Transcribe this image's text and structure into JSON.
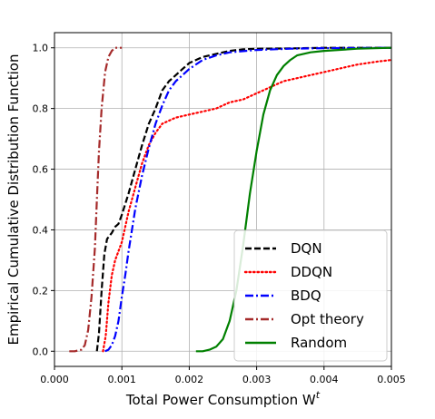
{
  "chart_data": {
    "type": "line",
    "title": "",
    "xlabel": "Total Power Consumption W",
    "xlabel_superscript": "t",
    "ylabel": "Empirical Cumulative Distribution Function",
    "xlim": [
      0.0,
      0.005
    ],
    "ylim": [
      -0.05,
      1.05
    ],
    "x_ticks": [
      0.0,
      0.001,
      0.002,
      0.003,
      0.004,
      0.005
    ],
    "x_tick_labels": [
      "0.000",
      "0.001",
      "0.002",
      "0.003",
      "0.004",
      "0.005"
    ],
    "y_ticks": [
      0.0,
      0.2,
      0.4,
      0.6,
      0.8,
      1.0
    ],
    "y_tick_labels": [
      "0.0",
      "0.2",
      "0.4",
      "0.6",
      "0.8",
      "1.0"
    ],
    "grid": true,
    "legend_position": "bottom-right",
    "series": [
      {
        "name": "DQN",
        "color": "#000000",
        "style": "dashed",
        "points": [
          [
            0.00063,
            0.0
          ],
          [
            0.00066,
            0.06
          ],
          [
            0.0007,
            0.2
          ],
          [
            0.00074,
            0.32
          ],
          [
            0.00078,
            0.37
          ],
          [
            0.00085,
            0.39
          ],
          [
            0.0009,
            0.41
          ],
          [
            0.00095,
            0.42
          ],
          [
            0.001,
            0.45
          ],
          [
            0.0011,
            0.52
          ],
          [
            0.0012,
            0.6
          ],
          [
            0.0013,
            0.68
          ],
          [
            0.0014,
            0.75
          ],
          [
            0.0015,
            0.8
          ],
          [
            0.0016,
            0.86
          ],
          [
            0.0017,
            0.89
          ],
          [
            0.0018,
            0.91
          ],
          [
            0.0019,
            0.93
          ],
          [
            0.002,
            0.95
          ],
          [
            0.0022,
            0.97
          ],
          [
            0.0024,
            0.98
          ],
          [
            0.0026,
            0.99
          ],
          [
            0.0028,
            0.995
          ],
          [
            0.003,
            0.997
          ],
          [
            0.0035,
            0.998
          ],
          [
            0.004,
            1.0
          ],
          [
            0.005,
            1.0
          ]
        ]
      },
      {
        "name": "DDQN",
        "color": "#ff0000",
        "style": "dotted",
        "points": [
          [
            0.00072,
            0.0
          ],
          [
            0.00076,
            0.05
          ],
          [
            0.0008,
            0.16
          ],
          [
            0.00085,
            0.25
          ],
          [
            0.0009,
            0.3
          ],
          [
            0.00095,
            0.33
          ],
          [
            0.001,
            0.36
          ],
          [
            0.0011,
            0.46
          ],
          [
            0.0012,
            0.54
          ],
          [
            0.0013,
            0.62
          ],
          [
            0.0014,
            0.68
          ],
          [
            0.0015,
            0.72
          ],
          [
            0.0016,
            0.75
          ],
          [
            0.0017,
            0.76
          ],
          [
            0.0018,
            0.77
          ],
          [
            0.002,
            0.78
          ],
          [
            0.0022,
            0.79
          ],
          [
            0.0024,
            0.8
          ],
          [
            0.0026,
            0.82
          ],
          [
            0.0028,
            0.83
          ],
          [
            0.003,
            0.85
          ],
          [
            0.0032,
            0.87
          ],
          [
            0.0034,
            0.89
          ],
          [
            0.0036,
            0.9
          ],
          [
            0.0038,
            0.91
          ],
          [
            0.004,
            0.92
          ],
          [
            0.0042,
            0.93
          ],
          [
            0.0045,
            0.945
          ],
          [
            0.0048,
            0.955
          ],
          [
            0.005,
            0.96
          ]
        ]
      },
      {
        "name": "BDQ",
        "color": "#0000ff",
        "style": "dashdot",
        "points": [
          [
            0.00075,
            0.0
          ],
          [
            0.0008,
            0.005
          ],
          [
            0.00085,
            0.02
          ],
          [
            0.0009,
            0.05
          ],
          [
            0.00095,
            0.1
          ],
          [
            0.001,
            0.18
          ],
          [
            0.00105,
            0.25
          ],
          [
            0.0011,
            0.33
          ],
          [
            0.00115,
            0.4
          ],
          [
            0.0012,
            0.47
          ],
          [
            0.0013,
            0.58
          ],
          [
            0.0014,
            0.67
          ],
          [
            0.0015,
            0.75
          ],
          [
            0.0016,
            0.81
          ],
          [
            0.0017,
            0.86
          ],
          [
            0.0018,
            0.89
          ],
          [
            0.0019,
            0.91
          ],
          [
            0.002,
            0.93
          ],
          [
            0.0022,
            0.96
          ],
          [
            0.0024,
            0.975
          ],
          [
            0.0026,
            0.985
          ],
          [
            0.003,
            0.993
          ],
          [
            0.0035,
            0.997
          ],
          [
            0.004,
            0.999
          ],
          [
            0.005,
            1.0
          ]
        ]
      },
      {
        "name": "Opt theory",
        "color": "#a52a2a",
        "style": "dashdot",
        "points": [
          [
            0.00022,
            0.0
          ],
          [
            0.0003,
            0.0
          ],
          [
            0.0004,
            0.005
          ],
          [
            0.00045,
            0.02
          ],
          [
            0.0005,
            0.07
          ],
          [
            0.00055,
            0.18
          ],
          [
            0.0006,
            0.34
          ],
          [
            0.00063,
            0.5
          ],
          [
            0.00066,
            0.66
          ],
          [
            0.0007,
            0.8
          ],
          [
            0.00075,
            0.92
          ],
          [
            0.0008,
            0.97
          ],
          [
            0.00085,
            0.99
          ],
          [
            0.0009,
            1.0
          ],
          [
            0.001,
            1.0
          ]
        ]
      },
      {
        "name": "Random",
        "color": "#008000",
        "style": "solid",
        "points": [
          [
            0.0021,
            0.0
          ],
          [
            0.0022,
            0.0
          ],
          [
            0.0023,
            0.005
          ],
          [
            0.0024,
            0.015
          ],
          [
            0.0025,
            0.04
          ],
          [
            0.0026,
            0.1
          ],
          [
            0.0027,
            0.2
          ],
          [
            0.0028,
            0.35
          ],
          [
            0.0029,
            0.52
          ],
          [
            0.003,
            0.66
          ],
          [
            0.0031,
            0.78
          ],
          [
            0.0032,
            0.86
          ],
          [
            0.0033,
            0.91
          ],
          [
            0.0034,
            0.94
          ],
          [
            0.0035,
            0.96
          ],
          [
            0.0036,
            0.975
          ],
          [
            0.0038,
            0.985
          ],
          [
            0.004,
            0.99
          ],
          [
            0.0045,
            0.997
          ],
          [
            0.005,
            1.0
          ]
        ]
      }
    ]
  }
}
